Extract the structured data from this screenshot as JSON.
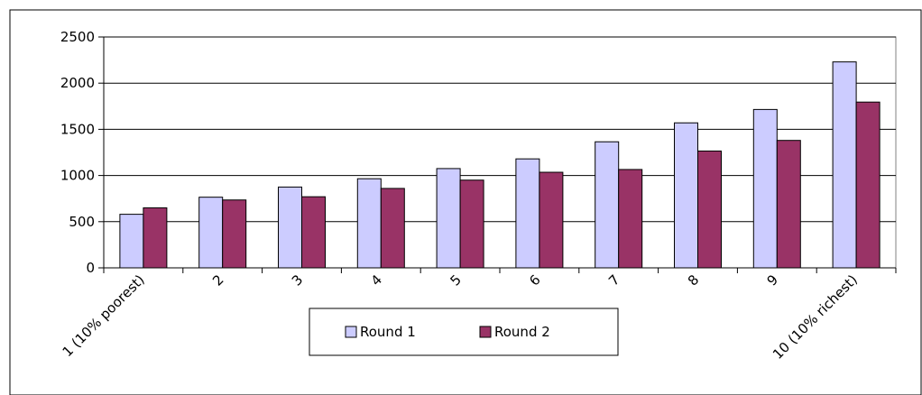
{
  "chart_data": {
    "type": "bar",
    "title": "",
    "xlabel": "",
    "ylabel": "",
    "categories": [
      "1 (10% poorest)",
      "2",
      "3",
      "4",
      "5",
      "6",
      "7",
      "8",
      "9",
      "10 (10% richest)"
    ],
    "series": [
      {
        "name": "Round 1",
        "color": "#ccccff",
        "values": [
          580,
          765,
          875,
          965,
          1075,
          1180,
          1365,
          1570,
          1715,
          2230
        ]
      },
      {
        "name": "Round 2",
        "color": "#993366",
        "values": [
          650,
          735,
          770,
          860,
          950,
          1035,
          1065,
          1265,
          1380,
          1795
        ]
      }
    ],
    "ylim": [
      0,
      2500
    ],
    "yticks": [
      0,
      500,
      1000,
      1500,
      2000,
      2500
    ],
    "grid": true,
    "legend_position": "bottom-center",
    "frame_color": "#000000"
  }
}
